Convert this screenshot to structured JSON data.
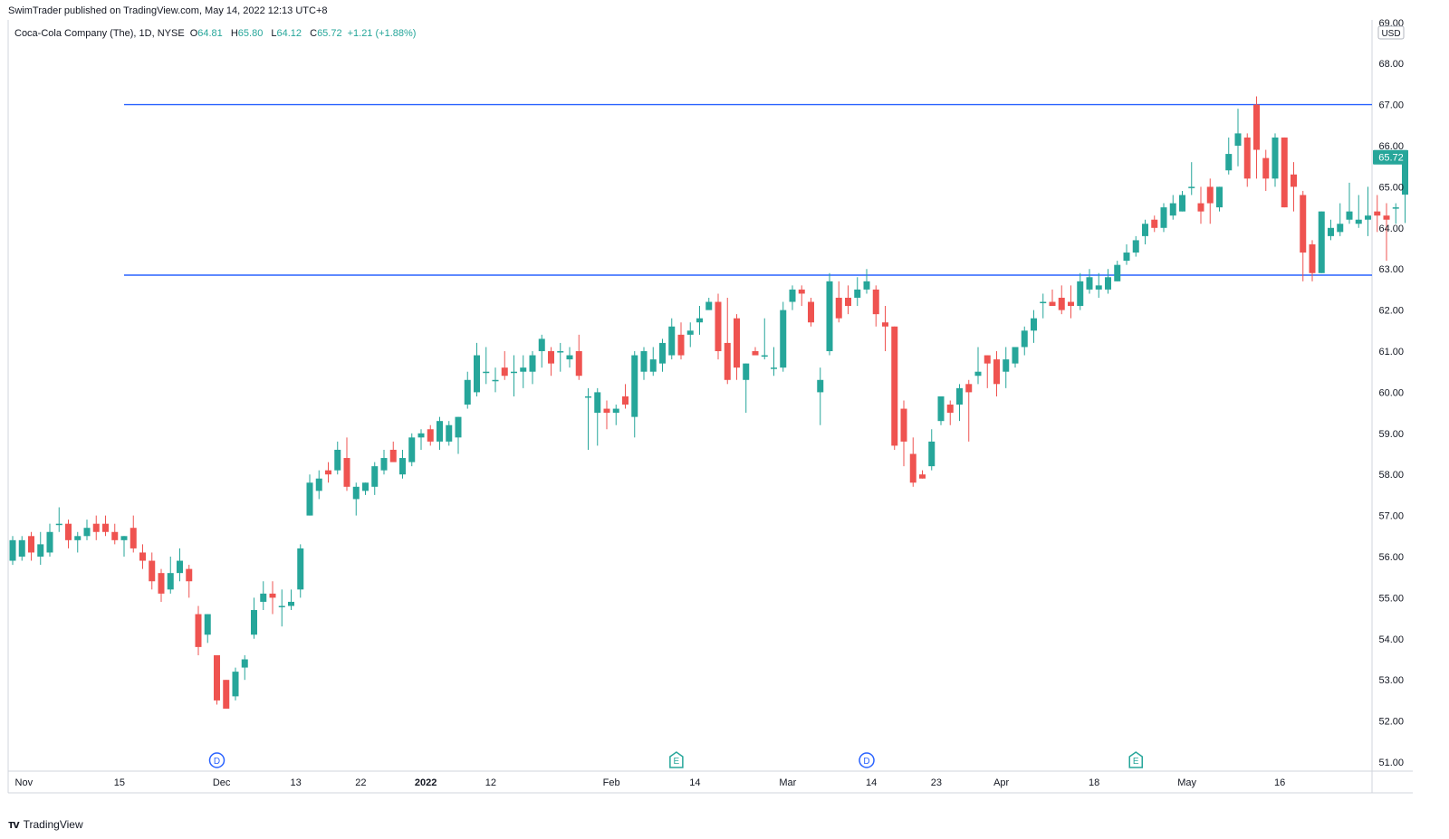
{
  "header": {
    "publisher_line": "SwimTrader published on TradingView.com, May 14, 2022 12:13 UTC+8"
  },
  "legend": {
    "symbol": "Coca-Cola Company (The), 1D, NYSE",
    "o_label": "O",
    "o_value": "64.81",
    "h_label": "H",
    "h_value": "65.80",
    "l_label": "L",
    "l_value": "64.12",
    "c_label": "C",
    "c_value": "65.72",
    "change": "+1.21 (+1.88%)"
  },
  "footer": {
    "brand": "TradingView"
  },
  "colors": {
    "up": "#26a69a",
    "down": "#ef5350",
    "hline": "#2962ff",
    "axis_text": "#131722",
    "dividend_marker": "#2962ff",
    "earnings_marker": "#26a69a"
  },
  "chart_data": {
    "type": "candlestick",
    "currency": "USD",
    "y_range": [
      50.8,
      69.0
    ],
    "y_ticks": [
      "69.00",
      "68.00",
      "67.00",
      "66.00",
      "65.00",
      "64.00",
      "63.00",
      "62.00",
      "61.00",
      "60.00",
      "59.00",
      "58.00",
      "57.00",
      "56.00",
      "55.00",
      "54.00",
      "53.00",
      "52.00",
      "51.00"
    ],
    "last_price_label": "65.72",
    "x_labels": [
      {
        "label": "Nov",
        "i": 1.2,
        "bold": false
      },
      {
        "label": "15",
        "i": 11.5,
        "bold": false
      },
      {
        "label": "Dec",
        "i": 22.5,
        "bold": false
      },
      {
        "label": "13",
        "i": 30.5,
        "bold": false
      },
      {
        "label": "22",
        "i": 37.5,
        "bold": false
      },
      {
        "label": "2022",
        "i": 44.5,
        "bold": true
      },
      {
        "label": "12",
        "i": 51.5,
        "bold": false
      },
      {
        "label": "Feb",
        "i": 64.5,
        "bold": false
      },
      {
        "label": "14",
        "i": 73.5,
        "bold": false
      },
      {
        "label": "Mar",
        "i": 83.5,
        "bold": false
      },
      {
        "label": "14",
        "i": 92.5,
        "bold": false
      },
      {
        "label": "23",
        "i": 99.5,
        "bold": false
      },
      {
        "label": "Apr",
        "i": 106.5,
        "bold": false
      },
      {
        "label": "18",
        "i": 116.5,
        "bold": false
      },
      {
        "label": "May",
        "i": 126.5,
        "bold": false
      },
      {
        "label": "16",
        "i": 136.5,
        "bold": false
      }
    ],
    "horizontal_lines": [
      67.0,
      62.85
    ],
    "event_markers": [
      {
        "label": "D",
        "type": "dividend",
        "i": 22.0
      },
      {
        "label": "E",
        "type": "earnings",
        "i": 71.5
      },
      {
        "label": "D",
        "type": "dividend",
        "i": 92.0
      },
      {
        "label": "E",
        "type": "earnings",
        "i": 121.0
      }
    ],
    "candles": [
      {
        "o": 55.9,
        "h": 56.5,
        "l": 55.8,
        "c": 56.4
      },
      {
        "o": 56.0,
        "h": 56.5,
        "l": 55.9,
        "c": 56.4
      },
      {
        "o": 56.5,
        "h": 56.6,
        "l": 55.9,
        "c": 56.1
      },
      {
        "o": 56.0,
        "h": 56.6,
        "l": 55.8,
        "c": 56.3
      },
      {
        "o": 56.1,
        "h": 56.8,
        "l": 56.0,
        "c": 56.6
      },
      {
        "o": 56.8,
        "h": 57.2,
        "l": 56.6,
        "c": 56.8
      },
      {
        "o": 56.8,
        "h": 56.9,
        "l": 56.2,
        "c": 56.4
      },
      {
        "o": 56.4,
        "h": 56.6,
        "l": 56.1,
        "c": 56.5
      },
      {
        "o": 56.5,
        "h": 56.9,
        "l": 56.4,
        "c": 56.7
      },
      {
        "o": 56.8,
        "h": 57.0,
        "l": 56.4,
        "c": 56.6
      },
      {
        "o": 56.8,
        "h": 57.0,
        "l": 56.5,
        "c": 56.6
      },
      {
        "o": 56.6,
        "h": 56.8,
        "l": 56.3,
        "c": 56.4
      },
      {
        "o": 56.4,
        "h": 56.5,
        "l": 56.0,
        "c": 56.5
      },
      {
        "o": 56.7,
        "h": 57.0,
        "l": 56.1,
        "c": 56.2
      },
      {
        "o": 56.1,
        "h": 56.3,
        "l": 55.7,
        "c": 55.9
      },
      {
        "o": 55.9,
        "h": 56.1,
        "l": 55.2,
        "c": 55.4
      },
      {
        "o": 55.6,
        "h": 55.7,
        "l": 54.9,
        "c": 55.1
      },
      {
        "o": 55.2,
        "h": 56.0,
        "l": 55.1,
        "c": 55.6
      },
      {
        "o": 55.6,
        "h": 56.2,
        "l": 55.4,
        "c": 55.9
      },
      {
        "o": 55.7,
        "h": 55.8,
        "l": 55.0,
        "c": 55.4
      },
      {
        "o": 54.6,
        "h": 54.8,
        "l": 53.6,
        "c": 53.8
      },
      {
        "o": 54.1,
        "h": 54.6,
        "l": 53.9,
        "c": 54.6
      },
      {
        "o": 53.6,
        "h": 53.6,
        "l": 52.4,
        "c": 52.5
      },
      {
        "o": 53.0,
        "h": 53.0,
        "l": 52.3,
        "c": 52.3
      },
      {
        "o": 52.6,
        "h": 53.3,
        "l": 52.5,
        "c": 53.2
      },
      {
        "o": 53.3,
        "h": 53.6,
        "l": 53.0,
        "c": 53.5
      },
      {
        "o": 54.1,
        "h": 55.0,
        "l": 54.0,
        "c": 54.7
      },
      {
        "o": 54.9,
        "h": 55.4,
        "l": 54.7,
        "c": 55.1
      },
      {
        "o": 55.1,
        "h": 55.4,
        "l": 54.6,
        "c": 55.0
      },
      {
        "o": 54.8,
        "h": 55.2,
        "l": 54.3,
        "c": 54.8
      },
      {
        "o": 54.8,
        "h": 55.2,
        "l": 54.7,
        "c": 54.9
      },
      {
        "o": 55.2,
        "h": 56.3,
        "l": 55.0,
        "c": 56.2
      },
      {
        "o": 57.0,
        "h": 58.0,
        "l": 57.0,
        "c": 57.8
      },
      {
        "o": 57.6,
        "h": 58.1,
        "l": 57.4,
        "c": 57.9
      },
      {
        "o": 58.1,
        "h": 58.3,
        "l": 57.8,
        "c": 58.0
      },
      {
        "o": 58.1,
        "h": 58.8,
        "l": 58.0,
        "c": 58.6
      },
      {
        "o": 58.4,
        "h": 58.9,
        "l": 57.6,
        "c": 57.7
      },
      {
        "o": 57.4,
        "h": 57.8,
        "l": 57.0,
        "c": 57.7
      },
      {
        "o": 57.6,
        "h": 57.8,
        "l": 57.5,
        "c": 57.8
      },
      {
        "o": 57.7,
        "h": 58.3,
        "l": 57.5,
        "c": 58.2
      },
      {
        "o": 58.1,
        "h": 58.6,
        "l": 58.0,
        "c": 58.4
      },
      {
        "o": 58.6,
        "h": 58.8,
        "l": 58.4,
        "c": 58.3
      },
      {
        "o": 58.0,
        "h": 58.6,
        "l": 57.9,
        "c": 58.4
      },
      {
        "o": 58.3,
        "h": 59.0,
        "l": 58.2,
        "c": 58.9
      },
      {
        "o": 58.9,
        "h": 59.1,
        "l": 58.6,
        "c": 59.0
      },
      {
        "o": 59.1,
        "h": 59.2,
        "l": 58.7,
        "c": 58.8
      },
      {
        "o": 58.8,
        "h": 59.4,
        "l": 58.6,
        "c": 59.3
      },
      {
        "o": 58.8,
        "h": 59.3,
        "l": 58.7,
        "c": 59.2
      },
      {
        "o": 58.9,
        "h": 59.4,
        "l": 58.5,
        "c": 59.4
      },
      {
        "o": 59.7,
        "h": 60.5,
        "l": 59.6,
        "c": 60.3
      },
      {
        "o": 60.0,
        "h": 61.2,
        "l": 59.9,
        "c": 60.9
      },
      {
        "o": 60.5,
        "h": 61.1,
        "l": 60.2,
        "c": 60.5
      },
      {
        "o": 60.3,
        "h": 60.6,
        "l": 60.0,
        "c": 60.3
      },
      {
        "o": 60.6,
        "h": 61.0,
        "l": 60.3,
        "c": 60.4
      },
      {
        "o": 60.5,
        "h": 60.9,
        "l": 59.9,
        "c": 60.5
      },
      {
        "o": 60.5,
        "h": 60.9,
        "l": 60.1,
        "c": 60.6
      },
      {
        "o": 60.5,
        "h": 61.0,
        "l": 60.2,
        "c": 60.9
      },
      {
        "o": 61.0,
        "h": 61.4,
        "l": 60.6,
        "c": 61.3
      },
      {
        "o": 61.0,
        "h": 61.1,
        "l": 60.4,
        "c": 60.7
      },
      {
        "o": 61.0,
        "h": 61.2,
        "l": 60.5,
        "c": 61.0
      },
      {
        "o": 60.8,
        "h": 61.1,
        "l": 60.6,
        "c": 60.9
      },
      {
        "o": 61.0,
        "h": 61.4,
        "l": 60.3,
        "c": 60.4
      },
      {
        "o": 59.9,
        "h": 60.1,
        "l": 58.6,
        "c": 59.9
      },
      {
        "o": 59.5,
        "h": 60.1,
        "l": 58.7,
        "c": 60.0
      },
      {
        "o": 59.6,
        "h": 59.8,
        "l": 59.1,
        "c": 59.5
      },
      {
        "o": 59.5,
        "h": 59.7,
        "l": 59.2,
        "c": 59.6
      },
      {
        "o": 59.9,
        "h": 60.2,
        "l": 59.6,
        "c": 59.7
      },
      {
        "o": 59.4,
        "h": 61.0,
        "l": 58.9,
        "c": 60.9
      },
      {
        "o": 60.5,
        "h": 61.1,
        "l": 60.3,
        "c": 61.0
      },
      {
        "o": 60.5,
        "h": 61.1,
        "l": 60.4,
        "c": 60.8
      },
      {
        "o": 60.7,
        "h": 61.3,
        "l": 60.5,
        "c": 61.2
      },
      {
        "o": 60.9,
        "h": 61.8,
        "l": 60.8,
        "c": 61.6
      },
      {
        "o": 61.4,
        "h": 61.7,
        "l": 60.8,
        "c": 60.9
      },
      {
        "o": 61.4,
        "h": 61.7,
        "l": 61.1,
        "c": 61.5
      },
      {
        "o": 61.7,
        "h": 62.1,
        "l": 61.4,
        "c": 61.8
      },
      {
        "o": 62.0,
        "h": 62.3,
        "l": 62.1,
        "c": 62.2
      },
      {
        "o": 62.2,
        "h": 62.4,
        "l": 60.8,
        "c": 61.0
      },
      {
        "o": 61.2,
        "h": 62.3,
        "l": 60.2,
        "c": 60.3
      },
      {
        "o": 61.8,
        "h": 61.9,
        "l": 60.3,
        "c": 60.6
      },
      {
        "o": 60.3,
        "h": 60.7,
        "l": 59.5,
        "c": 60.7
      },
      {
        "o": 61.0,
        "h": 61.1,
        "l": 60.9,
        "c": 60.9
      },
      {
        "o": 60.9,
        "h": 61.8,
        "l": 60.8,
        "c": 60.9
      },
      {
        "o": 60.6,
        "h": 61.1,
        "l": 60.4,
        "c": 60.6
      },
      {
        "o": 60.6,
        "h": 62.2,
        "l": 60.5,
        "c": 62.0
      },
      {
        "o": 62.2,
        "h": 62.6,
        "l": 62.0,
        "c": 62.5
      },
      {
        "o": 62.5,
        "h": 62.6,
        "l": 62.1,
        "c": 62.4
      },
      {
        "o": 62.2,
        "h": 62.3,
        "l": 61.6,
        "c": 61.7
      },
      {
        "o": 60.0,
        "h": 60.6,
        "l": 59.2,
        "c": 60.3
      },
      {
        "o": 61.0,
        "h": 62.9,
        "l": 60.9,
        "c": 62.7
      },
      {
        "o": 62.3,
        "h": 62.7,
        "l": 61.7,
        "c": 61.8
      },
      {
        "o": 62.3,
        "h": 62.6,
        "l": 61.9,
        "c": 62.1
      },
      {
        "o": 62.3,
        "h": 62.8,
        "l": 62.1,
        "c": 62.5
      },
      {
        "o": 62.5,
        "h": 63.0,
        "l": 62.4,
        "c": 62.7
      },
      {
        "o": 62.5,
        "h": 62.6,
        "l": 61.6,
        "c": 61.9
      },
      {
        "o": 61.7,
        "h": 62.1,
        "l": 61.0,
        "c": 61.6
      },
      {
        "o": 61.6,
        "h": 61.6,
        "l": 58.6,
        "c": 58.7
      },
      {
        "o": 59.6,
        "h": 59.8,
        "l": 58.2,
        "c": 58.8
      },
      {
        "o": 58.5,
        "h": 58.9,
        "l": 57.7,
        "c": 57.8
      },
      {
        "o": 58.0,
        "h": 58.1,
        "l": 57.9,
        "c": 57.9
      },
      {
        "o": 58.2,
        "h": 59.1,
        "l": 58.1,
        "c": 58.8
      },
      {
        "o": 59.3,
        "h": 59.9,
        "l": 59.2,
        "c": 59.9
      },
      {
        "o": 59.7,
        "h": 59.8,
        "l": 59.2,
        "c": 59.5
      },
      {
        "o": 59.7,
        "h": 60.2,
        "l": 59.3,
        "c": 60.1
      },
      {
        "o": 60.2,
        "h": 60.3,
        "l": 58.8,
        "c": 60.0
      },
      {
        "o": 60.4,
        "h": 61.1,
        "l": 60.2,
        "c": 60.5
      },
      {
        "o": 60.9,
        "h": 60.9,
        "l": 60.1,
        "c": 60.7
      },
      {
        "o": 60.8,
        "h": 61.0,
        "l": 59.9,
        "c": 60.2
      },
      {
        "o": 60.5,
        "h": 61.1,
        "l": 60.1,
        "c": 60.8
      },
      {
        "o": 60.7,
        "h": 61.0,
        "l": 60.6,
        "c": 61.1
      },
      {
        "o": 61.1,
        "h": 61.6,
        "l": 60.9,
        "c": 61.5
      },
      {
        "o": 61.5,
        "h": 62.0,
        "l": 61.2,
        "c": 61.8
      },
      {
        "o": 62.2,
        "h": 62.4,
        "l": 61.8,
        "c": 62.2
      },
      {
        "o": 62.2,
        "h": 62.5,
        "l": 62.1,
        "c": 62.1
      },
      {
        "o": 62.3,
        "h": 62.6,
        "l": 61.9,
        "c": 62.0
      },
      {
        "o": 62.2,
        "h": 62.6,
        "l": 61.8,
        "c": 62.1
      },
      {
        "o": 62.1,
        "h": 62.9,
        "l": 62.0,
        "c": 62.7
      },
      {
        "o": 62.5,
        "h": 63.0,
        "l": 62.4,
        "c": 62.8
      },
      {
        "o": 62.5,
        "h": 62.9,
        "l": 62.3,
        "c": 62.6
      },
      {
        "o": 62.5,
        "h": 63.0,
        "l": 62.4,
        "c": 62.8
      },
      {
        "o": 62.7,
        "h": 63.2,
        "l": 62.7,
        "c": 63.1
      },
      {
        "o": 63.2,
        "h": 63.6,
        "l": 63.1,
        "c": 63.4
      },
      {
        "o": 63.4,
        "h": 63.8,
        "l": 63.3,
        "c": 63.7
      },
      {
        "o": 63.8,
        "h": 64.2,
        "l": 63.6,
        "c": 64.1
      },
      {
        "o": 64.2,
        "h": 64.3,
        "l": 63.9,
        "c": 64.0
      },
      {
        "o": 64.0,
        "h": 64.6,
        "l": 63.9,
        "c": 64.5
      },
      {
        "o": 64.3,
        "h": 64.8,
        "l": 64.2,
        "c": 64.6
      },
      {
        "o": 64.4,
        "h": 64.9,
        "l": 64.4,
        "c": 64.8
      },
      {
        "o": 65.0,
        "h": 65.6,
        "l": 64.8,
        "c": 65.0
      },
      {
        "o": 64.6,
        "h": 65.0,
        "l": 64.1,
        "c": 64.4
      },
      {
        "o": 65.0,
        "h": 65.2,
        "l": 64.1,
        "c": 64.6
      },
      {
        "o": 64.5,
        "h": 65.0,
        "l": 64.4,
        "c": 65.0
      },
      {
        "o": 65.4,
        "h": 66.2,
        "l": 65.3,
        "c": 65.8
      },
      {
        "o": 66.0,
        "h": 66.9,
        "l": 65.5,
        "c": 66.3
      },
      {
        "o": 66.2,
        "h": 66.3,
        "l": 65.0,
        "c": 65.2
      },
      {
        "o": 67.0,
        "h": 67.2,
        "l": 65.2,
        "c": 65.9
      },
      {
        "o": 65.7,
        "h": 65.9,
        "l": 64.9,
        "c": 65.2
      },
      {
        "o": 65.2,
        "h": 66.3,
        "l": 65.0,
        "c": 66.2
      },
      {
        "o": 66.2,
        "h": 66.2,
        "l": 64.5,
        "c": 64.5
      },
      {
        "o": 65.3,
        "h": 65.6,
        "l": 64.4,
        "c": 65.0
      },
      {
        "o": 64.8,
        "h": 64.9,
        "l": 62.7,
        "c": 63.4
      },
      {
        "o": 63.6,
        "h": 63.7,
        "l": 62.7,
        "c": 62.9
      },
      {
        "o": 62.9,
        "h": 64.4,
        "l": 62.9,
        "c": 64.4
      },
      {
        "o": 63.8,
        "h": 64.2,
        "l": 63.7,
        "c": 64.0
      },
      {
        "o": 63.9,
        "h": 64.6,
        "l": 63.8,
        "c": 64.1
      },
      {
        "o": 64.2,
        "h": 65.1,
        "l": 64.1,
        "c": 64.4
      },
      {
        "o": 64.1,
        "h": 64.8,
        "l": 64.0,
        "c": 64.2
      },
      {
        "o": 64.2,
        "h": 65.0,
        "l": 63.8,
        "c": 64.3
      },
      {
        "o": 64.4,
        "h": 64.8,
        "l": 63.9,
        "c": 64.3
      },
      {
        "o": 64.3,
        "h": 64.6,
        "l": 63.2,
        "c": 64.2
      },
      {
        "o": 64.5,
        "h": 64.6,
        "l": 64.1,
        "c": 64.5
      },
      {
        "o": 64.81,
        "h": 65.8,
        "l": 64.12,
        "c": 65.72
      }
    ]
  }
}
